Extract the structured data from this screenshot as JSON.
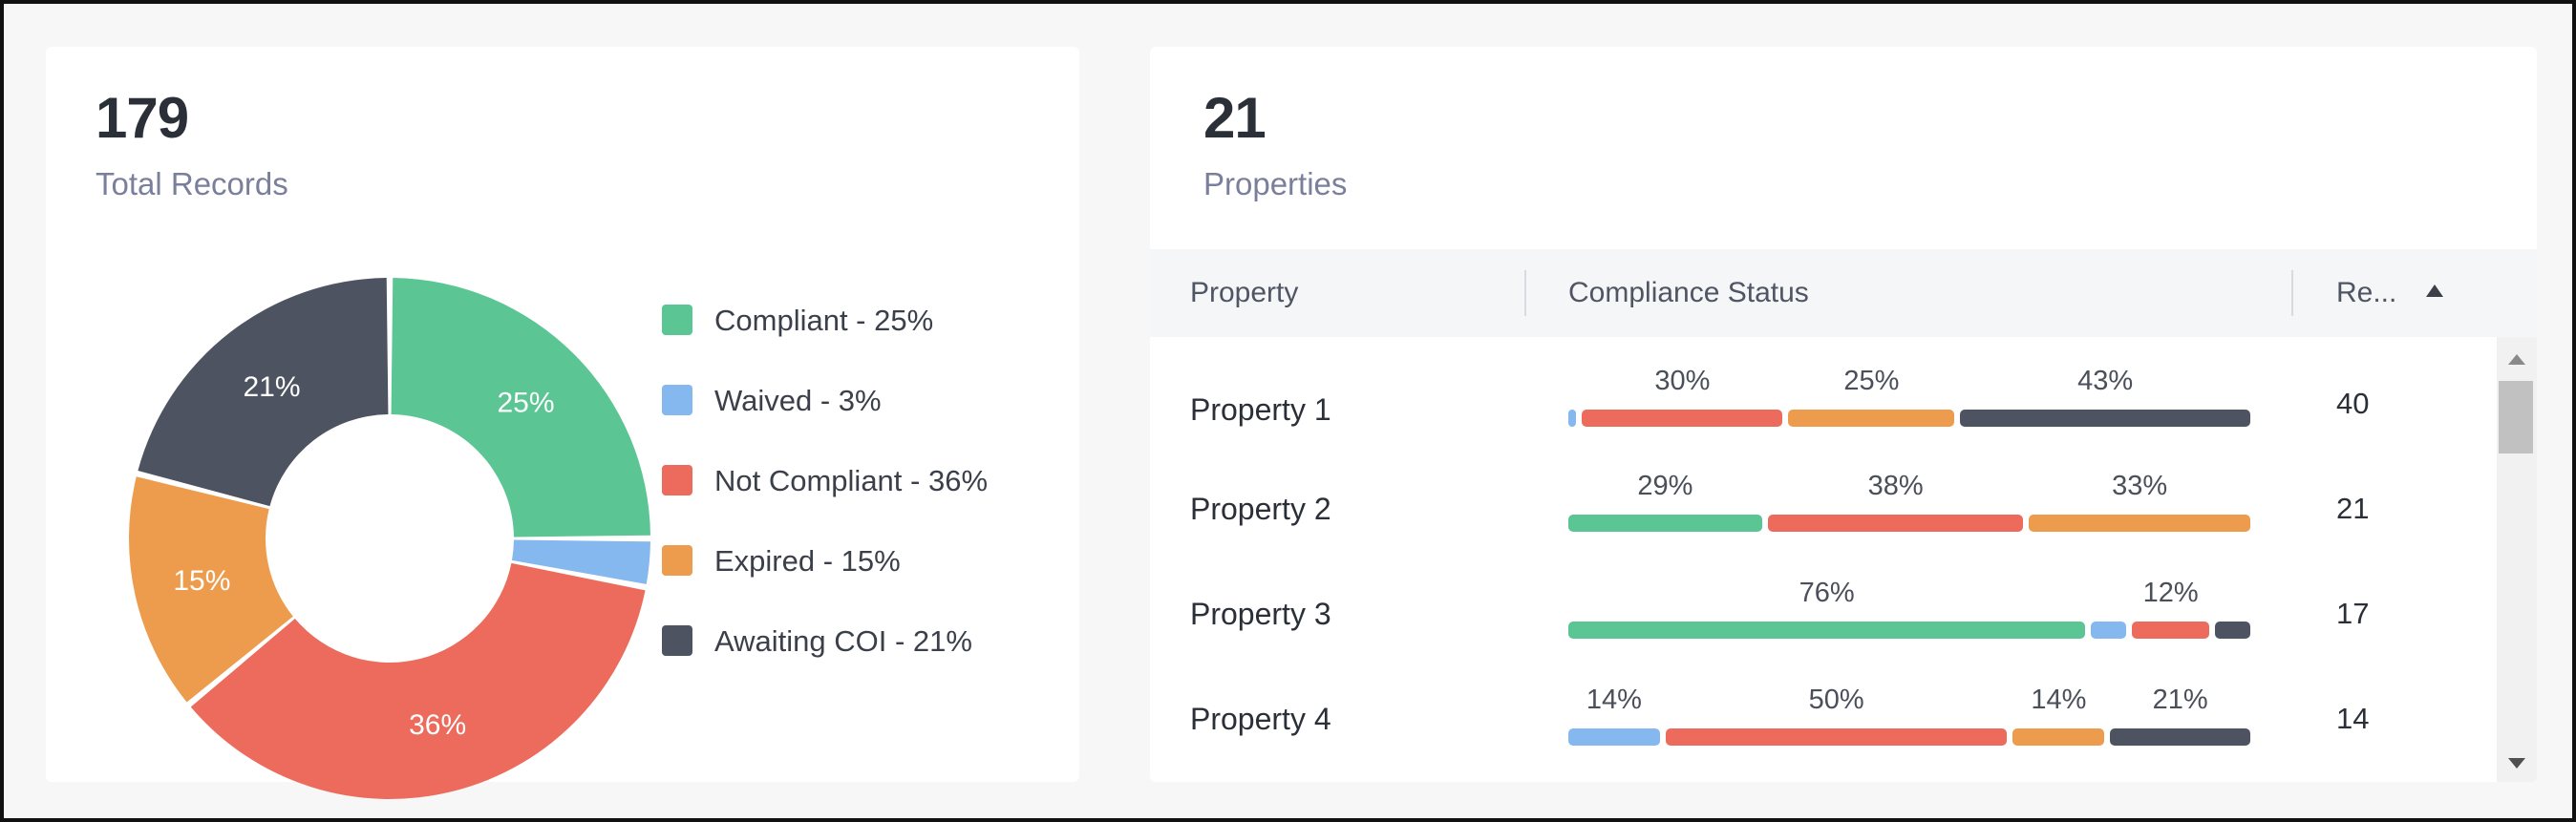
{
  "colors": {
    "compliant": "#5bc694",
    "waived": "#85b8ee",
    "not_compliant": "#ec6b5c",
    "expired": "#ed9c4d",
    "awaiting_coi": "#4d5360"
  },
  "records": {
    "total": "179",
    "label": "Total Records"
  },
  "chart_data": {
    "type": "pie",
    "categories": [
      "Compliant",
      "Waived",
      "Not Compliant",
      "Expired",
      "Awaiting COI"
    ],
    "values": [
      25,
      3,
      36,
      15,
      21
    ],
    "slice_labels": [
      "25%",
      "",
      "36%",
      "15%",
      "21%"
    ],
    "colors": [
      "#5bc694",
      "#85b8ee",
      "#ec6b5c",
      "#ed9c4d",
      "#4d5360"
    ]
  },
  "legend": [
    {
      "label": "Compliant - 25%",
      "color": "#5bc694"
    },
    {
      "label": "Waived - 3%",
      "color": "#85b8ee"
    },
    {
      "label": "Not Compliant - 36%",
      "color": "#ec6b5c"
    },
    {
      "label": "Expired - 15%",
      "color": "#ed9c4d"
    },
    {
      "label": "Awaiting COI - 21%",
      "color": "#4d5360"
    }
  ],
  "properties": {
    "total": "21",
    "label": "Properties",
    "columns": {
      "property": "Property",
      "compliance": "Compliance Status",
      "records": "Re..."
    },
    "rows": [
      {
        "name": "Property 1",
        "records": "40",
        "segments": [
          {
            "status": "waived",
            "value": 2,
            "label": ""
          },
          {
            "status": "not_compliant",
            "value": 30,
            "label": "30%"
          },
          {
            "status": "expired",
            "value": 25,
            "label": "25%"
          },
          {
            "status": "awaiting_coi",
            "value": 43,
            "label": "43%"
          }
        ]
      },
      {
        "name": "Property 2",
        "records": "21",
        "segments": [
          {
            "status": "compliant",
            "value": 29,
            "label": "29%"
          },
          {
            "status": "not_compliant",
            "value": 38,
            "label": "38%"
          },
          {
            "status": "expired",
            "value": 33,
            "label": "33%"
          }
        ]
      },
      {
        "name": "Property 3",
        "records": "17",
        "segments": [
          {
            "status": "compliant",
            "value": 76,
            "label": "76%"
          },
          {
            "status": "waived",
            "value": 6,
            "label": ""
          },
          {
            "status": "not_compliant",
            "value": 12,
            "label": "12%"
          },
          {
            "status": "awaiting_coi",
            "value": 6,
            "label": ""
          }
        ]
      },
      {
        "name": "Property 4",
        "records": "14",
        "segments": [
          {
            "status": "waived",
            "value": 14,
            "label": "14%"
          },
          {
            "status": "not_compliant",
            "value": 50,
            "label": "50%"
          },
          {
            "status": "expired",
            "value": 14,
            "label": "14%"
          },
          {
            "status": "awaiting_coi",
            "value": 21,
            "label": "21%"
          }
        ]
      }
    ]
  }
}
